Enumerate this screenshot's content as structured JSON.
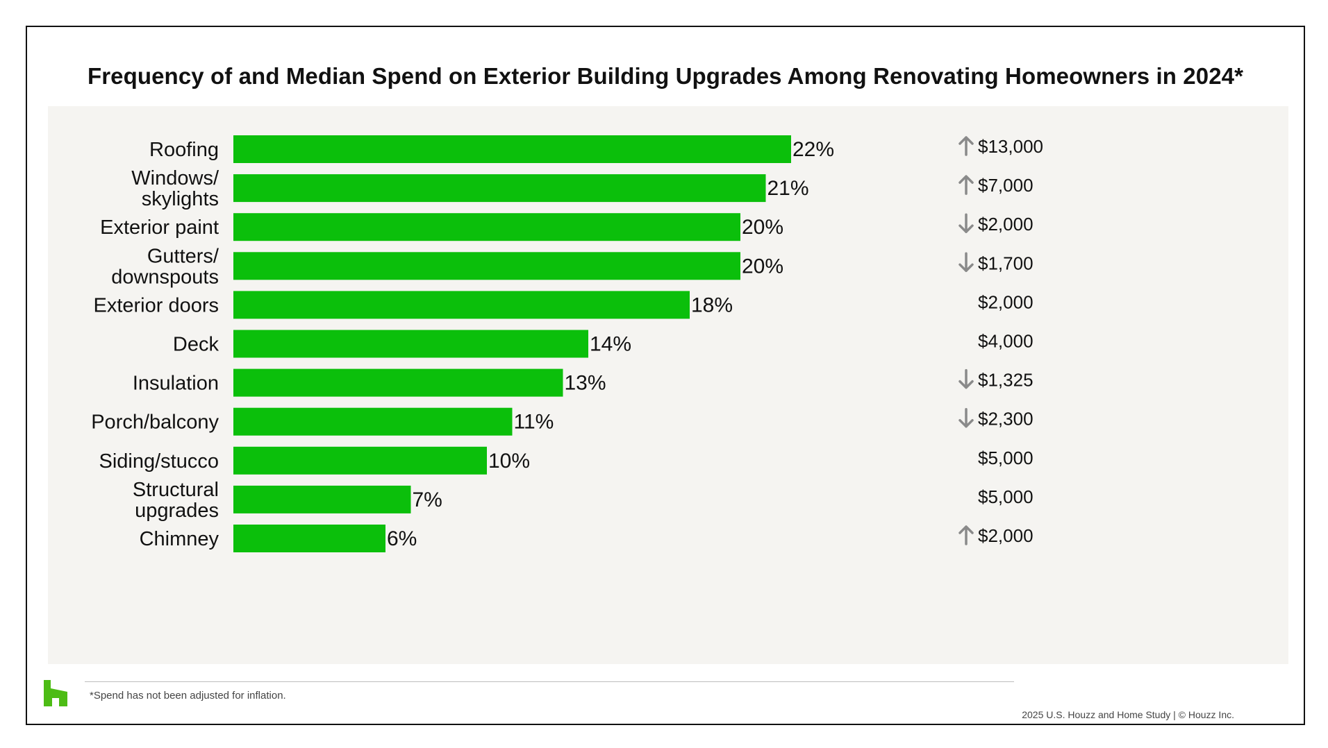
{
  "chart_data": {
    "type": "bar",
    "orientation": "horizontal",
    "title": "Frequency of and Median Spend on Exterior Building Upgrades Among Renovating Homeowners in 2024*",
    "categories": [
      [
        "Roofing"
      ],
      [
        "Windows/",
        "skylights"
      ],
      [
        "Exterior paint"
      ],
      [
        "Gutters/",
        "downspouts"
      ],
      [
        "Exterior doors"
      ],
      [
        "Deck"
      ],
      [
        "Insulation"
      ],
      [
        "Porch/balcony"
      ],
      [
        "Siding/stucco"
      ],
      [
        "Structural",
        "upgrades"
      ],
      [
        "Chimney"
      ]
    ],
    "values": [
      22,
      21,
      20,
      20,
      18,
      14,
      13,
      11,
      10,
      7,
      6
    ],
    "value_labels": [
      "22%",
      "21%",
      "20%",
      "20%",
      "18%",
      "14%",
      "13%",
      "11%",
      "10%",
      "7%",
      "6%"
    ],
    "median_spend": [
      "$13,000",
      "$7,000",
      "$2,000",
      "$1,700",
      "$2,000",
      "$4,000",
      "$1,325",
      "$2,300",
      "$5,000",
      "$5,000",
      "$2,000"
    ],
    "spend_trend": [
      "up",
      "up",
      "down",
      "down",
      "none",
      "none",
      "down",
      "down",
      "none",
      "none",
      "up"
    ],
    "bar_color": "#0bbf0b",
    "arrow_color": "#8a8a8a",
    "panel_color": "#f5f4f1",
    "grid": false
  },
  "footer": {
    "footnote": "*Spend has not been adjusted for inflation.",
    "source": "2025 U.S. Houzz and Home  Study | © Houzz Inc.",
    "logo_icon": "houzz-logo-icon",
    "logo_color": "#4dbc15"
  }
}
